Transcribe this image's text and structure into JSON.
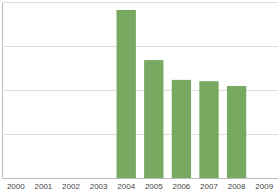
{
  "chart_data": {
    "type": "bar",
    "categories": [
      "2000",
      "2001",
      "2002",
      "2003",
      "2004",
      "2005",
      "2006",
      "2007",
      "2008",
      "2009"
    ],
    "values": [
      null,
      null,
      null,
      null,
      3.82,
      2.68,
      2.23,
      2.2,
      2.09,
      null
    ],
    "color": "#78a960",
    "ylim": [
      0,
      4
    ],
    "yticks": [
      0,
      1,
      2,
      3,
      4
    ],
    "grid": true,
    "tick_labels": "x"
  }
}
